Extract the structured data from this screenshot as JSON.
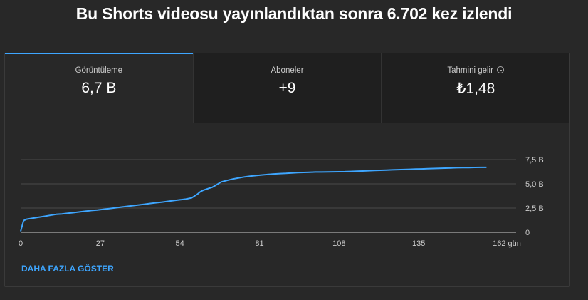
{
  "page": {
    "title": "Bu Shorts videosu yayınlandıktan sonra 6.702 kez izlendi"
  },
  "tabs": [
    {
      "label": "Görüntüleme",
      "value": "6,7 B",
      "active": true
    },
    {
      "label": "Aboneler",
      "value": "+9",
      "active": false
    },
    {
      "label": "Tahmini gelir",
      "value": "₺1,48",
      "active": false,
      "icon": "info-icon"
    }
  ],
  "colors": {
    "accent": "#3ea6ff",
    "line": "#3ea6ff",
    "grid": "#4a4a4a"
  },
  "chart_data": {
    "type": "line",
    "x_unit_label": "162 gün",
    "x_ticks": [
      0,
      27,
      54,
      81,
      108,
      135
    ],
    "y_ticks": [
      0,
      2.5,
      5.0,
      7.5
    ],
    "y_tick_labels": [
      "0",
      "2,5 B",
      "5,0 B",
      "7,5 B"
    ],
    "xlim": [
      0,
      162
    ],
    "ylim": [
      0,
      7.5
    ],
    "series": [
      {
        "values_x": [
          0,
          1,
          2,
          4,
          6,
          8,
          10,
          12,
          14,
          16,
          18,
          20,
          22,
          24,
          26,
          28,
          30,
          32,
          34,
          36,
          38,
          40,
          42,
          44,
          46,
          48,
          50,
          52,
          54,
          56,
          58,
          60,
          61,
          62,
          63,
          64,
          65,
          66,
          68,
          70,
          72,
          74,
          76,
          78,
          80,
          82,
          84,
          86,
          88,
          90,
          92,
          94,
          96,
          98,
          100,
          102,
          104,
          106,
          108,
          110,
          112,
          114,
          116,
          118,
          120,
          122,
          124,
          126,
          128,
          130,
          132,
          134,
          136,
          138,
          140,
          142,
          144,
          146,
          148,
          150,
          152,
          154,
          156,
          158
        ],
        "values_y": [
          0.1,
          1.2,
          1.35,
          1.45,
          1.55,
          1.65,
          1.75,
          1.85,
          1.9,
          1.97,
          2.03,
          2.1,
          2.18,
          2.25,
          2.3,
          2.37,
          2.45,
          2.52,
          2.6,
          2.68,
          2.75,
          2.82,
          2.9,
          2.98,
          3.05,
          3.12,
          3.2,
          3.28,
          3.35,
          3.43,
          3.55,
          3.95,
          4.2,
          4.35,
          4.45,
          4.55,
          4.65,
          4.82,
          5.2,
          5.35,
          5.5,
          5.62,
          5.72,
          5.8,
          5.86,
          5.92,
          5.98,
          6.02,
          6.06,
          6.08,
          6.12,
          6.16,
          6.18,
          6.2,
          6.22,
          6.22,
          6.23,
          6.24,
          6.25,
          6.26,
          6.28,
          6.3,
          6.32,
          6.35,
          6.38,
          6.4,
          6.42,
          6.44,
          6.46,
          6.48,
          6.5,
          6.52,
          6.54,
          6.56,
          6.58,
          6.6,
          6.62,
          6.64,
          6.66,
          6.67,
          6.68,
          6.69,
          6.7,
          6.7
        ]
      }
    ]
  },
  "footer": {
    "more_label": "DAHA FAZLA GÖSTER"
  }
}
